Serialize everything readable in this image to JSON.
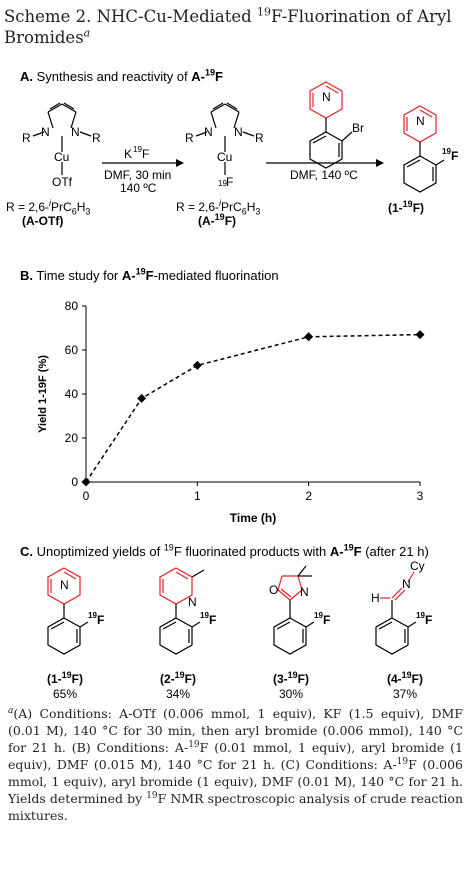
{
  "title": {
    "prefix": "Scheme 2. NHC-Cu-Mediated ",
    "sup": "19",
    "suffix": "F-Fluorination of Aryl Bromides",
    "footnote_mark": "a"
  },
  "section_a": {
    "letter": "A.",
    "text": "Synthesis and reactivity of ",
    "bold": "A-",
    "sup": "19",
    "bold2": "F",
    "reagent1": {
      "k": "K",
      "sup": "19",
      "f": "F",
      "cond1": "DMF, 30 min",
      "cond2": "140 ºC"
    },
    "reagent2": {
      "cond": "DMF, 140 ºC"
    },
    "r_label": "R = 2,6-",
    "r_ipr": "i",
    "r_rest": "PrC",
    "r_sub6": "6",
    "r_h": "H",
    "r_sub3": "3",
    "cmpd1": "(A-OTf)",
    "cmpd2_pre": "(A-",
    "cmpd2_sup": "19",
    "cmpd2_post": "F)",
    "product_pre": "(1-",
    "product_sup": "19",
    "product_post": "F)",
    "atom_N": "N",
    "atom_R": "R",
    "atom_Cu": "Cu",
    "atom_OTf": "OTf",
    "atom_Br": "Br",
    "atom_F": "F",
    "atom_19": "19"
  },
  "section_b": {
    "letter": "B.",
    "text": "Time study for ",
    "bold": "A-",
    "sup": "19",
    "bold2": "F",
    "rest": "-mediated fluorination"
  },
  "chart_data": {
    "type": "line",
    "x": [
      0,
      0.5,
      1,
      2,
      3
    ],
    "y": [
      0,
      38,
      53,
      66,
      67
    ],
    "xlabel": "Time (h)",
    "ylabel": "Yield 1-19F (%)",
    "xlim": [
      0,
      3
    ],
    "ylim": [
      0,
      80
    ],
    "xticks": [
      "0",
      "1",
      "2",
      "3"
    ],
    "yticks": [
      "0",
      "20",
      "40",
      "60",
      "80"
    ],
    "grid": false,
    "line_style": "dashed",
    "marker": "diamond"
  },
  "section_c": {
    "letter": "C.",
    "text": "Unoptimized yields of ",
    "sup": "19",
    "text2": "F fluorinated products with ",
    "bold": "A-",
    "sup2": "19",
    "bold2": "F",
    "rest": " (after 21 h)",
    "products": [
      {
        "pre": "(1-",
        "sup": "19",
        "post": "F)",
        "yield": "65%"
      },
      {
        "pre": "(2-",
        "sup": "19",
        "post": "F)",
        "yield": "34%"
      },
      {
        "pre": "(3-",
        "sup": "19",
        "post": "F)",
        "yield": "30%"
      },
      {
        "pre": "(4-",
        "sup": "19",
        "post": "F)",
        "yield": "37%"
      }
    ],
    "atom_O": "O",
    "atom_H": "H",
    "atom_Cy": "Cy"
  },
  "footnote": {
    "mark": "a",
    "p1": "(A) Conditions: A-OTf (0.006 mmol, 1 equiv), KF (1.5 equiv), DMF (0.01 M), 140 °C for 30 min, then aryl bromide (0.006 mmol), 140 °C for 21 h. (B) Conditions: A-",
    "p1sup": "19",
    "p2": "F (0.01 mmol, 1 equiv), aryl bromide (1 equiv), DMF (0.015 M), 140 °C for 21 h. (C) Conditions: A-",
    "p2sup": "19",
    "p3": "F (0.006 mmol, 1 equiv), aryl bromide (1 equiv), DMF (0.01 M), 140 °C for 21 h. Yields determined by ",
    "p3sup": "19",
    "p4": "F NMR spectroscopic analysis of crude reaction mixtures."
  }
}
